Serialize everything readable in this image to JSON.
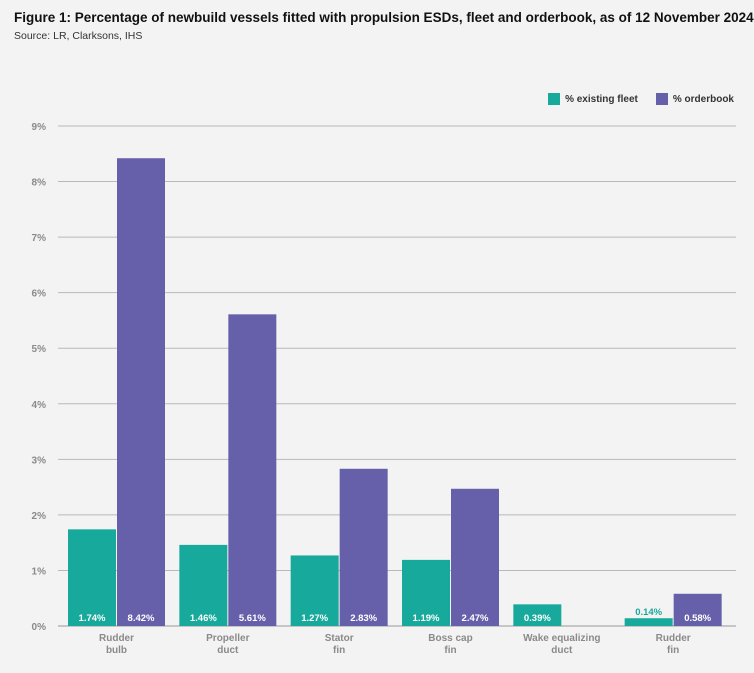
{
  "header": {
    "title": "Figure 1: Percentage of newbuild vessels fitted with propulsion ESDs, fleet and orderbook, as of 12 November 2024",
    "source": "Source: LR, Clarksons, IHS"
  },
  "legend": {
    "placement": "top-right",
    "items": [
      {
        "label": "% existing fleet",
        "color": "#17a99b"
      },
      {
        "label": "% orderbook",
        "color": "#6660aa"
      }
    ]
  },
  "chart_data": {
    "type": "bar",
    "categories": [
      [
        "Rudder",
        "bulb"
      ],
      [
        "Propeller",
        "duct"
      ],
      [
        "Stator",
        "fin"
      ],
      [
        "Boss cap",
        "fin"
      ],
      [
        "Wake equalizing",
        "duct"
      ],
      [
        "Rudder",
        "fin"
      ]
    ],
    "series": [
      {
        "name": "% existing fleet",
        "color": "#17a99b",
        "values": [
          1.74,
          1.46,
          1.27,
          1.19,
          0.39,
          0.14
        ],
        "labels": [
          "1.74%",
          "1.46%",
          "1.27%",
          "1.19%",
          "0.39%",
          "0.14%"
        ]
      },
      {
        "name": "% orderbook",
        "color": "#6660aa",
        "values": [
          8.42,
          5.61,
          2.83,
          2.47,
          null,
          0.58
        ],
        "labels": [
          "8.42%",
          "5.61%",
          "2.83%",
          "2.47%",
          "",
          "0.58%"
        ]
      }
    ],
    "ylim": [
      0,
      9
    ],
    "yticks": [
      "0%",
      "1%",
      "2%",
      "3%",
      "4%",
      "5%",
      "6%",
      "7%",
      "8%",
      "9%"
    ],
    "grid": true
  }
}
